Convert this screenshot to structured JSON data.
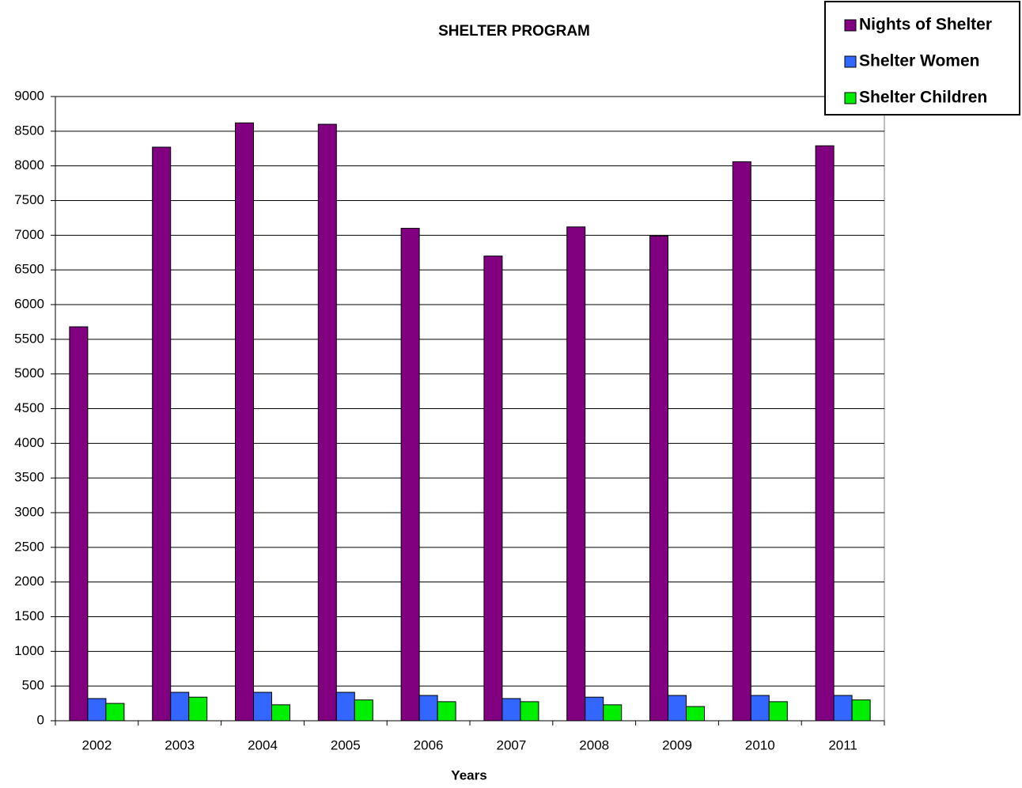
{
  "chart_data": {
    "type": "bar",
    "title": "SHELTER PROGRAM",
    "x_label": "Years",
    "categories": [
      "2002",
      "2003",
      "2004",
      "2005",
      "2006",
      "2007",
      "2008",
      "2009",
      "2010",
      "2011"
    ],
    "series": [
      {
        "name": "Nights of Shelter",
        "color": "#800080",
        "values": [
          5680,
          8270,
          8620,
          8600,
          7100,
          6700,
          7120,
          6990,
          8060,
          8290
        ]
      },
      {
        "name": "Shelter Women",
        "color": "#3366ff",
        "values": [
          320,
          410,
          410,
          410,
          365,
          320,
          340,
          365,
          365,
          365
        ]
      },
      {
        "name": "Shelter Children",
        "color": "#00ee00",
        "values": [
          250,
          340,
          230,
          300,
          275,
          275,
          230,
          205,
          275,
          300
        ]
      }
    ],
    "ylim": [
      0,
      9000
    ],
    "yticks": [
      0,
      500,
      1000,
      1500,
      2000,
      2500,
      3000,
      3500,
      4000,
      4500,
      5000,
      5500,
      6000,
      6500,
      7000,
      7500,
      8000,
      8500,
      9000
    ],
    "grid": true,
    "legend": "top-right"
  }
}
